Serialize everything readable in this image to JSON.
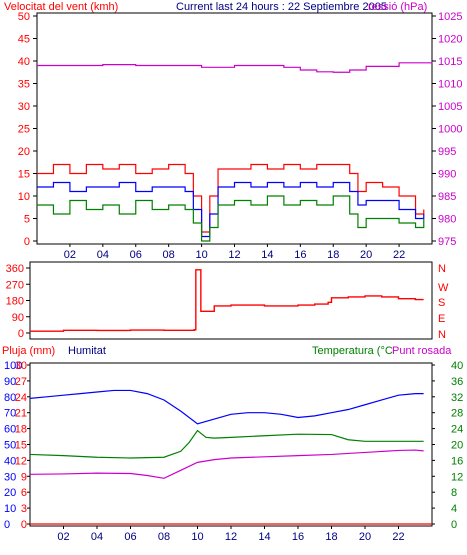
{
  "chart_data": [
    {
      "type": "line",
      "panel": "wind-pressure",
      "titles": {
        "left": "Velocitat del vent (kmh)",
        "center": "Current last 24 hours : 22 Septiembre 2005",
        "right": "ressió (hPa)"
      },
      "x_ticks": [
        "02",
        "04",
        "06",
        "08",
        "10",
        "12",
        "14",
        "16",
        "18",
        "20",
        "22"
      ],
      "x_range_hours": [
        0,
        24
      ],
      "y_left": {
        "ticks": [
          "0",
          "5",
          "10",
          "15",
          "20",
          "25",
          "30",
          "35",
          "40",
          "45",
          "50"
        ],
        "range": [
          0,
          50
        ]
      },
      "y_right": {
        "ticks": [
          "975",
          "980",
          "985",
          "990",
          "995",
          "1000",
          "1005",
          "1010",
          "1015",
          "1020",
          "1025"
        ],
        "range": [
          975,
          1025
        ]
      },
      "series": [
        {
          "color": "#cc00cc",
          "axis": "right",
          "x": [
            0,
            2,
            4,
            6,
            8,
            10,
            12,
            14,
            15,
            16,
            17,
            18,
            19,
            20,
            22,
            24
          ],
          "y": [
            1014,
            1014,
            1014.2,
            1014,
            1014,
            1013.6,
            1014,
            1014,
            1013.6,
            1013,
            1012.6,
            1012.5,
            1013,
            1013.8,
            1014.6,
            1014.8
          ]
        },
        {
          "color": "#ff0000",
          "axis": "left",
          "x": [
            0,
            1,
            2,
            3,
            4,
            5,
            6,
            7,
            8,
            9,
            9.5,
            10,
            10.5,
            11,
            12,
            13,
            14,
            15,
            16,
            17,
            18,
            19,
            19.5,
            20,
            21,
            22,
            23,
            23.5
          ],
          "y": [
            15,
            17,
            15,
            17,
            16,
            17,
            15,
            16,
            17,
            15,
            10,
            2,
            10,
            16,
            16,
            17,
            16,
            17,
            16,
            17,
            17,
            15,
            11,
            13,
            12,
            10,
            6,
            7
          ]
        },
        {
          "color": "#0000ff",
          "axis": "left",
          "x": [
            0,
            1,
            2,
            3,
            4,
            5,
            6,
            7,
            8,
            9,
            9.5,
            10,
            10.5,
            11,
            12,
            13,
            14,
            15,
            16,
            17,
            18,
            19,
            19.5,
            20,
            21,
            22,
            23,
            23.5
          ],
          "y": [
            12,
            13,
            11,
            12,
            12,
            13,
            11,
            12,
            12,
            11,
            7,
            1,
            6,
            12,
            13,
            12,
            13,
            12,
            13,
            12,
            13,
            11,
            8,
            9,
            9,
            7,
            5,
            6
          ]
        },
        {
          "color": "#008000",
          "axis": "left",
          "x": [
            0,
            1,
            2,
            3,
            4,
            5,
            6,
            7,
            8,
            9,
            9.5,
            10,
            10.5,
            11,
            12,
            13,
            14,
            15,
            16,
            17,
            18,
            19,
            19.5,
            20,
            21,
            22,
            23,
            23.5
          ],
          "y": [
            8,
            6,
            9,
            7,
            8,
            6,
            9,
            7,
            8,
            7,
            4,
            0,
            3,
            8,
            9,
            8,
            10,
            8,
            9,
            8,
            10,
            6,
            3,
            5,
            5,
            4,
            3,
            5
          ]
        }
      ]
    },
    {
      "type": "line",
      "panel": "wind-direction",
      "x_ticks": [],
      "x_range_hours": [
        0,
        24
      ],
      "y_left": {
        "ticks": [
          "0",
          "90",
          "180",
          "270",
          "360"
        ],
        "range": [
          0,
          360
        ]
      },
      "y_right": {
        "ticks": [
          "N",
          "E",
          "S",
          "W",
          "N"
        ]
      },
      "series": [
        {
          "color": "#ff0000",
          "x": [
            0,
            2,
            4,
            6,
            8,
            9.8,
            9.9,
            10.2,
            11,
            12,
            14,
            16,
            17,
            17.8,
            18,
            19,
            20,
            21,
            22,
            23,
            23.5
          ],
          "y": [
            10,
            15,
            14,
            16,
            15,
            18,
            350,
            120,
            150,
            155,
            150,
            155,
            160,
            170,
            195,
            200,
            205,
            200,
            190,
            185,
            185
          ]
        }
      ]
    },
    {
      "type": "line",
      "panel": "rain-humidity-temperature",
      "titles": {
        "left": "Pluja (mm)",
        "middle": "Humitat",
        "right1": "Temperatura (°C",
        "right2": "Punt rosada"
      },
      "x_ticks": [
        "02",
        "04",
        "06",
        "08",
        "10",
        "12",
        "14",
        "16",
        "18",
        "20",
        "22"
      ],
      "x_range_hours": [
        0,
        24
      ],
      "y_rain": {
        "ticks": [
          "0",
          "3",
          "6",
          "9",
          "12",
          "15",
          "18",
          "21",
          "24",
          "27",
          "30"
        ],
        "range": [
          0,
          30
        ]
      },
      "y_humidity": {
        "ticks": [
          "0",
          "10",
          "20",
          "30",
          "40",
          "50",
          "60",
          "70",
          "80",
          "90",
          "100"
        ],
        "range": [
          0,
          100
        ]
      },
      "y_temperature": {
        "ticks": [
          "0",
          "4",
          "8",
          "12",
          "16",
          "20",
          "24",
          "28",
          "32",
          "36",
          "40"
        ],
        "range": [
          0,
          40
        ]
      },
      "series": [
        {
          "color": "#0000ff",
          "axis": "humidity",
          "x": [
            0,
            1,
            2,
            3,
            4,
            5,
            6,
            7,
            8,
            9,
            10,
            11,
            12,
            13,
            14,
            15,
            16,
            17,
            18,
            19,
            20,
            21,
            22,
            23,
            23.5
          ],
          "y": [
            79,
            80,
            81,
            82,
            83,
            84,
            84,
            82,
            78,
            71,
            63,
            66,
            69,
            70,
            70,
            69,
            67,
            68,
            70,
            72,
            75,
            78,
            81,
            82,
            82
          ]
        },
        {
          "color": "#008000",
          "axis": "temperature",
          "x": [
            0,
            2,
            4,
            6,
            8,
            9,
            9.5,
            10,
            10.5,
            11,
            12,
            14,
            16,
            18,
            19,
            20,
            22,
            23,
            23.5
          ],
          "y": [
            17.5,
            17.2,
            16.8,
            16.6,
            16.8,
            18.3,
            20.5,
            23.5,
            21.8,
            21.6,
            21.8,
            22.2,
            22.6,
            22.5,
            21.2,
            20.8,
            20.8,
            20.8,
            20.8
          ]
        },
        {
          "color": "#cc00cc",
          "axis": "temperature",
          "x": [
            0,
            2,
            4,
            6,
            7,
            8,
            9,
            10,
            11,
            12,
            14,
            16,
            18,
            20,
            22,
            23,
            23.5
          ],
          "y": [
            12.5,
            12.6,
            12.8,
            12.7,
            12.2,
            11.5,
            13.5,
            15.5,
            16.2,
            16.6,
            16.9,
            17.2,
            17.5,
            18.0,
            18.5,
            18.6,
            18.4
          ]
        },
        {
          "color": "#ff0000",
          "axis": "rain",
          "x": [
            0,
            24
          ],
          "y": [
            0,
            0
          ]
        }
      ]
    }
  ]
}
